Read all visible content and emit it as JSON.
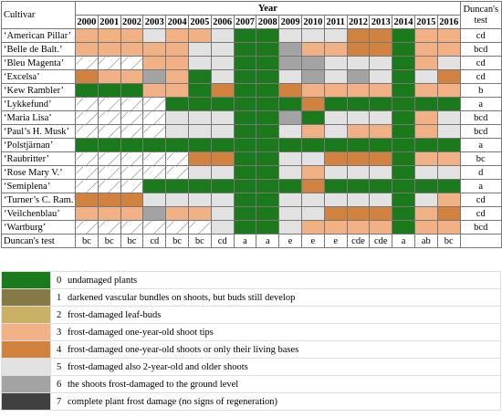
{
  "table": {
    "headers": {
      "cultivar": "Cultivar",
      "year": "Year",
      "duncan": "Duncan's test"
    },
    "years": [
      "2000",
      "2001",
      "2002",
      "2003",
      "2004",
      "2005",
      "2006",
      "2007",
      "2008",
      "2009",
      "2010",
      "2011",
      "2012",
      "2013",
      "2014",
      "2015",
      "2016"
    ],
    "rows": [
      {
        "name": "‘American Pillar’",
        "levels": [
          3,
          3,
          3,
          5,
          3,
          3,
          5,
          0,
          0,
          5,
          5,
          5,
          4,
          4,
          0,
          3,
          3
        ],
        "duncan": "cd"
      },
      {
        "name": "‘Belle de Balt.’",
        "levels": [
          3,
          3,
          3,
          3,
          3,
          5,
          5,
          0,
          0,
          6,
          3,
          3,
          4,
          4,
          0,
          3,
          3
        ],
        "duncan": "bcd"
      },
      {
        "name": "‘Bleu Magenta’",
        "levels": [
          null,
          null,
          null,
          3,
          3,
          5,
          5,
          0,
          0,
          6,
          6,
          5,
          5,
          5,
          0,
          3,
          5
        ],
        "duncan": "cd"
      },
      {
        "name": "‘Excelsa’",
        "levels": [
          4,
          3,
          3,
          6,
          3,
          0,
          5,
          0,
          0,
          5,
          6,
          5,
          6,
          5,
          0,
          5,
          4
        ],
        "duncan": "cd"
      },
      {
        "name": "‘Kew Rambler’",
        "levels": [
          0,
          0,
          0,
          3,
          3,
          0,
          4,
          0,
          0,
          4,
          3,
          3,
          3,
          3,
          0,
          3,
          3
        ],
        "duncan": "b"
      },
      {
        "name": "‘Lykkefund’",
        "levels": [
          null,
          null,
          null,
          null,
          0,
          0,
          0,
          0,
          0,
          0,
          4,
          0,
          0,
          0,
          0,
          0,
          0
        ],
        "duncan": "a"
      },
      {
        "name": "‘Maria Lisa’",
        "levels": [
          null,
          null,
          null,
          null,
          5,
          5,
          5,
          0,
          0,
          6,
          0,
          5,
          5,
          5,
          0,
          3,
          5
        ],
        "duncan": "bcd"
      },
      {
        "name": "‘Paul’s H. Musk’",
        "levels": [
          null,
          null,
          null,
          null,
          5,
          5,
          5,
          0,
          0,
          5,
          3,
          5,
          3,
          3,
          0,
          3,
          5
        ],
        "duncan": "bcd"
      },
      {
        "name": "‘Polstjärnan’",
        "levels": [
          0,
          0,
          0,
          0,
          0,
          0,
          0,
          0,
          0,
          0,
          0,
          0,
          0,
          0,
          0,
          0,
          0
        ],
        "duncan": "a"
      },
      {
        "name": "‘Raubritter’",
        "levels": [
          null,
          null,
          null,
          null,
          null,
          4,
          4,
          0,
          0,
          5,
          5,
          4,
          4,
          4,
          0,
          3,
          3
        ],
        "duncan": "bc"
      },
      {
        "name": "‘Rose Mary V.’",
        "levels": [
          null,
          null,
          null,
          null,
          null,
          5,
          5,
          0,
          0,
          5,
          3,
          5,
          5,
          5,
          0,
          5,
          5
        ],
        "duncan": "d"
      },
      {
        "name": "‘Semiplena’",
        "levels": [
          null,
          null,
          null,
          0,
          0,
          0,
          0,
          0,
          0,
          0,
          4,
          0,
          0,
          0,
          0,
          0,
          0
        ],
        "duncan": "a"
      },
      {
        "name": "‘Turner’s C. Ram.’",
        "levels": [
          4,
          4,
          4,
          5,
          5,
          5,
          5,
          0,
          0,
          5,
          5,
          5,
          5,
          5,
          0,
          5,
          3
        ],
        "duncan": "cd"
      },
      {
        "name": "‘Veilchenblau’",
        "levels": [
          3,
          3,
          3,
          6,
          3,
          3,
          5,
          0,
          0,
          5,
          5,
          4,
          4,
          4,
          0,
          3,
          4
        ],
        "duncan": "cd"
      },
      {
        "name": "‘Wartburg’",
        "levels": [
          null,
          null,
          null,
          null,
          null,
          null,
          5,
          0,
          0,
          5,
          3,
          3,
          3,
          3,
          0,
          3,
          3
        ],
        "duncan": "bcd"
      }
    ],
    "duncan_row": {
      "label": "Duncan's test",
      "values": [
        "bc",
        "bc",
        "bc",
        "cd",
        "bc",
        "bc",
        "cd",
        "a",
        "a",
        "e",
        "e",
        "e",
        "cde",
        "cde",
        "a",
        "ab",
        "bc"
      ]
    }
  },
  "legend": [
    {
      "level": 0,
      "label": "undamaged plants",
      "color": "#1b7a1b"
    },
    {
      "level": 1,
      "label": "darkened vascular bundles on shoots, but buds still develop",
      "color": "#857a45"
    },
    {
      "level": 2,
      "label": "frost-damaged leaf-buds",
      "color": "#c9b064"
    },
    {
      "level": 3,
      "label": "frost-damaged one-year-old shoot tips",
      "color": "#f2b184"
    },
    {
      "level": 4,
      "label": "frost-damaged one-year-old shoots or only their living bases",
      "color": "#d2823f"
    },
    {
      "level": 5,
      "label": "frost-damaged also 2-year-old and older shoots",
      "color": "#e2e2e2"
    },
    {
      "level": 6,
      "label": "the shoots frost-damaged to the ground level",
      "color": "#a3a3a3"
    },
    {
      "level": 7,
      "label": "complete plant frost damage (no signs of regeneration)",
      "color": "#404040"
    }
  ]
}
